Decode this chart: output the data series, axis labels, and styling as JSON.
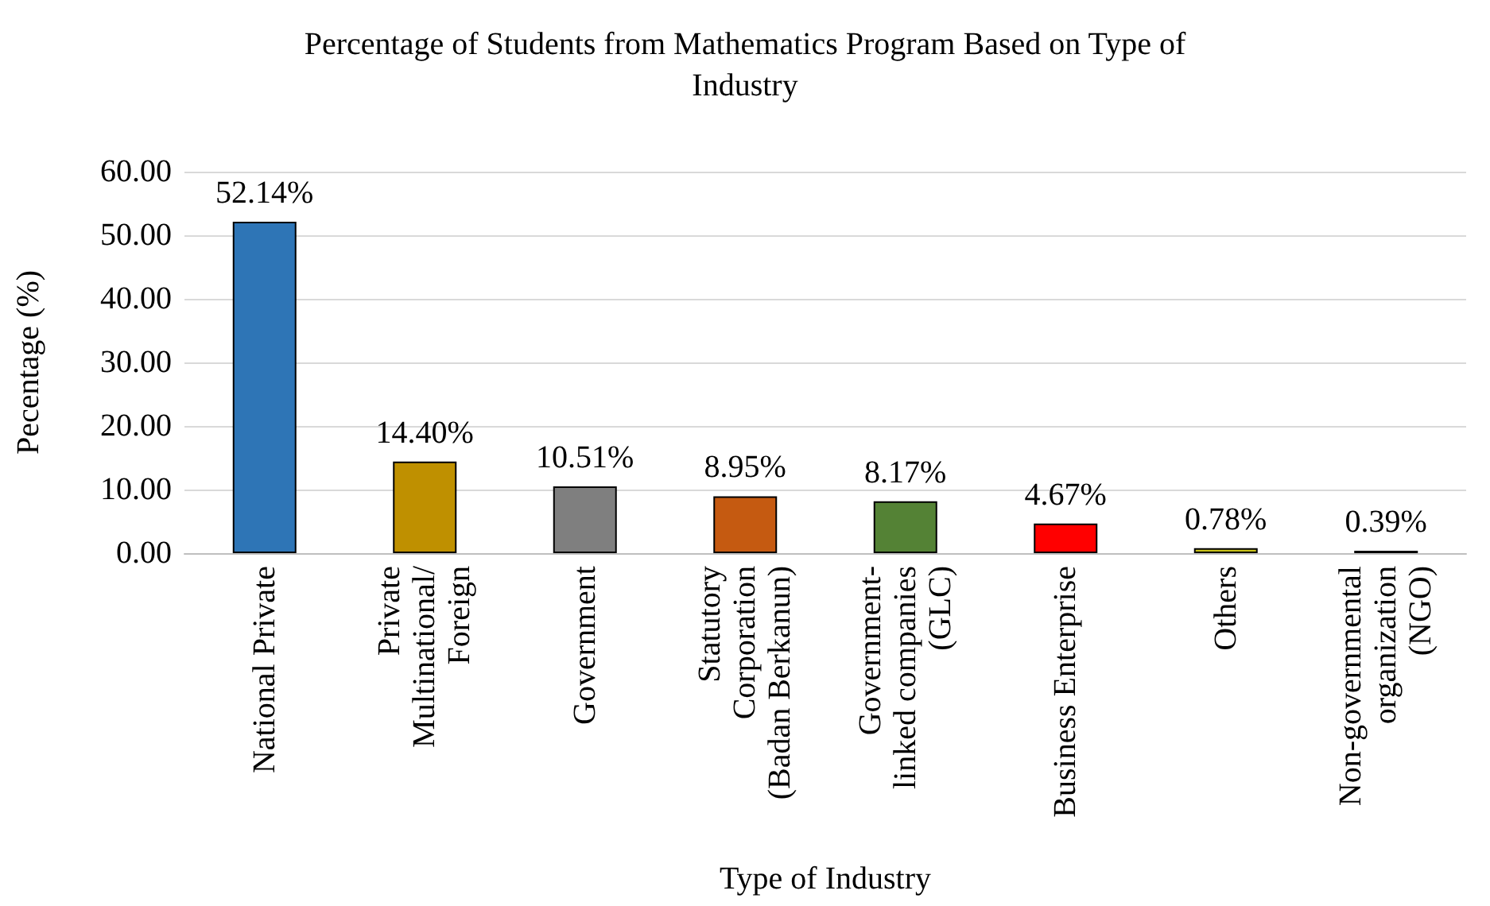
{
  "chart_data": {
    "type": "bar",
    "title": "Percentage of Students from Mathematics Program Based on Type of\nIndustry",
    "xlabel": "Type of Industry",
    "ylabel": "Pecentage (%)",
    "categories": [
      "National Private",
      "Private\nMultinational/\nForeign",
      "Government",
      "Statutory\nCorporation\n(Badan Berkanun)",
      "Government-\nlinked companies\n(GLC)",
      "Business Enterprise",
      "Others",
      "Non-governmental\norganization\n(NGO)"
    ],
    "values": [
      52.14,
      14.4,
      10.51,
      8.95,
      8.17,
      4.67,
      0.78,
      0.39
    ],
    "colors": [
      "#2e75b6",
      "#bf9000",
      "#7f7f7f",
      "#c55a11",
      "#548235",
      "#ff0000",
      "#c9c21a",
      "#404040"
    ],
    "value_labels": [
      "52.14%",
      "14.40%",
      "10.51%",
      "8.95%",
      "8.17%",
      "4.67%",
      "0.78%",
      "0.39%"
    ],
    "ylim": [
      0,
      60
    ],
    "yticks": [
      {
        "value": 0,
        "label": "0.00"
      },
      {
        "value": 10,
        "label": "10.00"
      },
      {
        "value": 20,
        "label": "20.00"
      },
      {
        "value": 30,
        "label": "30.00"
      },
      {
        "value": 40,
        "label": "40.00"
      },
      {
        "value": 50,
        "label": "50.00"
      },
      {
        "value": 60,
        "label": "60.00"
      }
    ],
    "grid": "y"
  }
}
